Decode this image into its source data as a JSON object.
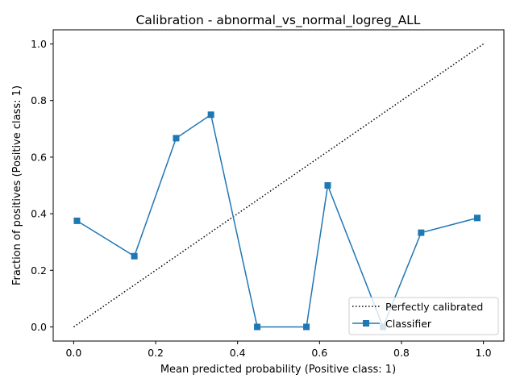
{
  "chart_data": {
    "type": "line",
    "title": "Calibration - abnormal_vs_normal_logreg_ALL",
    "xlabel": "Mean predicted probability (Positive class: 1)",
    "ylabel": "Fraction of positives (Positive class: 1)",
    "xlim": [
      -0.05,
      1.05
    ],
    "ylim": [
      -0.05,
      1.05
    ],
    "xticks": [
      "0.0",
      "0.2",
      "0.4",
      "0.6",
      "0.8",
      "1.0"
    ],
    "yticks": [
      "0.0",
      "0.2",
      "0.4",
      "0.6",
      "0.8",
      "1.0"
    ],
    "grid": false,
    "legend_position": "lower-right",
    "series": [
      {
        "name": "Perfectly calibrated",
        "style": "dotted",
        "color": "#000000",
        "x": [
          0.0,
          1.0
        ],
        "y": [
          0.0,
          1.0
        ]
      },
      {
        "name": "Classifier",
        "style": "solid-square-markers",
        "color": "#1f77b4",
        "x": [
          0.008,
          0.148,
          0.25,
          0.335,
          0.448,
          0.568,
          0.62,
          0.755,
          0.848,
          0.985
        ],
        "y": [
          0.375,
          0.25,
          0.667,
          0.75,
          0.0,
          0.0,
          0.5,
          0.0,
          0.333,
          0.385
        ]
      }
    ]
  }
}
